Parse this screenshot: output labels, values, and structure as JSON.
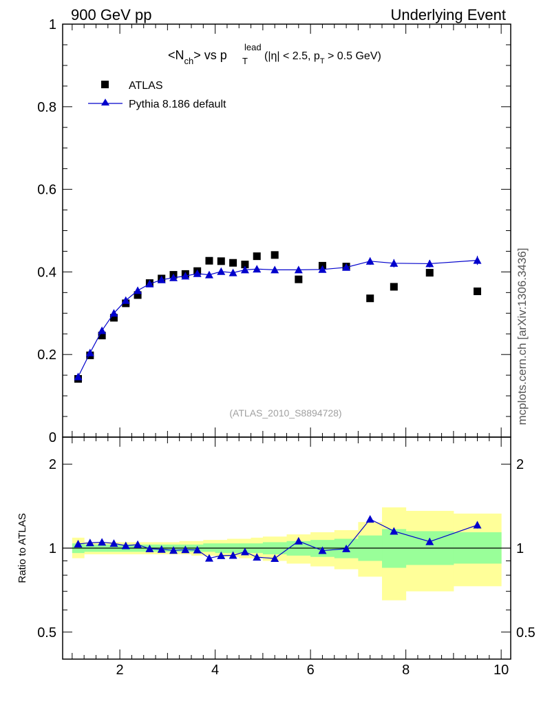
{
  "header": {
    "left": "900 GeV pp",
    "right": "Underlying Event",
    "side": "mcplots.cern.ch [arXiv:1306.3436]"
  },
  "chart_data": [
    {
      "type": "scatter",
      "panel": "main",
      "title_parts": {
        "a": "<N",
        "a_sub": "ch",
        "b": "> vs p",
        "b_sup": "lead",
        "b_sub": "T",
        "c": " (|η| < 2.5, p",
        "c_sub": "T",
        "d": " > 0.5 GeV)"
      },
      "watermark": "(ATLAS_2010_S8894728)",
      "xlim": [
        0.8,
        10.2
      ],
      "ylim": [
        0,
        1
      ],
      "yticks": [
        {
          "v": 0,
          "label": "0"
        },
        {
          "v": 0.2,
          "label": "0.2"
        },
        {
          "v": 0.4,
          "label": "0.4"
        },
        {
          "v": 0.6,
          "label": "0.6"
        },
        {
          "v": 0.8,
          "label": "0.8"
        },
        {
          "v": 1,
          "label": "1"
        }
      ],
      "series": [
        {
          "name": "ATLAS",
          "marker": "square",
          "color": "#000000",
          "x": [
            1.125,
            1.375,
            1.625,
            1.875,
            2.125,
            2.375,
            2.625,
            2.875,
            3.125,
            3.375,
            3.625,
            3.875,
            4.125,
            4.375,
            4.625,
            4.875,
            5.25,
            5.75,
            6.25,
            6.75,
            7.25,
            7.75,
            8.5,
            9.5
          ],
          "y": [
            0.141,
            0.198,
            0.246,
            0.289,
            0.324,
            0.344,
            0.373,
            0.384,
            0.393,
            0.395,
            0.402,
            0.427,
            0.426,
            0.422,
            0.418,
            0.438,
            0.441,
            0.382,
            0.415,
            0.413,
            0.336,
            0.364,
            0.398,
            0.353
          ]
        },
        {
          "name": "Pythia 8.186 default",
          "marker": "triangle",
          "color": "#0000cc",
          "x": [
            1.125,
            1.375,
            1.625,
            1.875,
            2.125,
            2.375,
            2.625,
            2.875,
            3.125,
            3.375,
            3.625,
            3.875,
            4.125,
            4.375,
            4.625,
            4.875,
            5.25,
            5.75,
            6.25,
            6.75,
            7.25,
            7.75,
            8.5,
            9.5
          ],
          "y": [
            0.146,
            0.204,
            0.258,
            0.3,
            0.331,
            0.355,
            0.371,
            0.381,
            0.386,
            0.39,
            0.396,
            0.393,
            0.401,
            0.398,
            0.405,
            0.407,
            0.405,
            0.405,
            0.406,
            0.411,
            0.426,
            0.421,
            0.42,
            0.428
          ],
          "err": [
            0.003,
            0.003,
            0.003,
            0.003,
            0.003,
            0.003,
            0.003,
            0.003,
            0.003,
            0.003,
            0.003,
            0.003,
            0.003,
            0.003,
            0.004,
            0.004,
            0.004,
            0.005,
            0.006,
            0.006,
            0.009,
            0.01,
            0.009,
            0.011
          ]
        }
      ]
    },
    {
      "type": "scatter",
      "panel": "ratio",
      "ylabel": "Ratio to ATLAS",
      "ylog": true,
      "ylim": [
        0.4,
        2.5
      ],
      "reference": 1,
      "xlim": [
        0.8,
        10.2
      ],
      "xticks": [
        {
          "v": 2,
          "label": "2"
        },
        {
          "v": 4,
          "label": "4"
        },
        {
          "v": 6,
          "label": "6"
        },
        {
          "v": 8,
          "label": "8"
        },
        {
          "v": 10,
          "label": "10"
        }
      ],
      "yticks": [
        {
          "v": 0.5,
          "label": "0.5"
        },
        {
          "v": 1,
          "label": "1"
        },
        {
          "v": 2,
          "label": "2"
        }
      ],
      "bands": {
        "edges": [
          1.0,
          1.25,
          1.5,
          1.75,
          2.0,
          2.25,
          2.5,
          2.75,
          3.0,
          3.25,
          3.5,
          3.75,
          4.0,
          4.25,
          4.5,
          4.75,
          5.0,
          5.5,
          6.0,
          6.5,
          7.0,
          7.5,
          8.0,
          9.0,
          10.0
        ],
        "yellow_lo": [
          0.92,
          0.95,
          0.95,
          0.95,
          0.95,
          0.95,
          0.95,
          0.95,
          0.95,
          0.95,
          0.94,
          0.94,
          0.93,
          0.93,
          0.92,
          0.92,
          0.9,
          0.88,
          0.86,
          0.84,
          0.79,
          0.65,
          0.7,
          0.73
        ],
        "yellow_hi": [
          1.09,
          1.05,
          1.05,
          1.05,
          1.05,
          1.05,
          1.05,
          1.05,
          1.05,
          1.06,
          1.06,
          1.07,
          1.07,
          1.08,
          1.08,
          1.09,
          1.1,
          1.12,
          1.14,
          1.16,
          1.24,
          1.4,
          1.36,
          1.33
        ],
        "green_lo": [
          0.96,
          0.97,
          0.97,
          0.97,
          0.97,
          0.97,
          0.97,
          0.97,
          0.97,
          0.97,
          0.97,
          0.97,
          0.96,
          0.96,
          0.96,
          0.96,
          0.95,
          0.94,
          0.93,
          0.92,
          0.9,
          0.85,
          0.87,
          0.88
        ],
        "green_hi": [
          1.04,
          1.03,
          1.03,
          1.03,
          1.03,
          1.03,
          1.03,
          1.03,
          1.03,
          1.03,
          1.03,
          1.04,
          1.04,
          1.04,
          1.04,
          1.04,
          1.05,
          1.06,
          1.07,
          1.08,
          1.11,
          1.17,
          1.15,
          1.14
        ]
      },
      "series": [
        {
          "name": "Pythia 8.186 default",
          "marker": "triangle",
          "color": "#0000cc",
          "x": [
            1.125,
            1.375,
            1.625,
            1.875,
            2.125,
            2.375,
            2.625,
            2.875,
            3.125,
            3.375,
            3.625,
            3.875,
            4.125,
            4.375,
            4.625,
            4.875,
            5.25,
            5.75,
            6.25,
            6.75,
            7.25,
            7.75,
            8.5,
            9.5
          ],
          "y": [
            1.035,
            1.045,
            1.05,
            1.04,
            1.02,
            1.03,
            0.995,
            0.99,
            0.982,
            0.987,
            0.985,
            0.92,
            0.94,
            0.942,
            0.97,
            0.928,
            0.918,
            1.06,
            0.98,
            0.995,
            1.27,
            1.15,
            1.055,
            1.21
          ],
          "err": [
            0.02,
            0.02,
            0.02,
            0.02,
            0.02,
            0.02,
            0.02,
            0.02,
            0.02,
            0.02,
            0.02,
            0.02,
            0.02,
            0.02,
            0.02,
            0.02,
            0.02,
            0.02,
            0.02,
            0.02,
            0.03,
            0.03,
            0.03,
            0.035
          ]
        }
      ],
      "band_colors": {
        "yellow": "#ffff99",
        "green": "#99ff99"
      }
    }
  ]
}
